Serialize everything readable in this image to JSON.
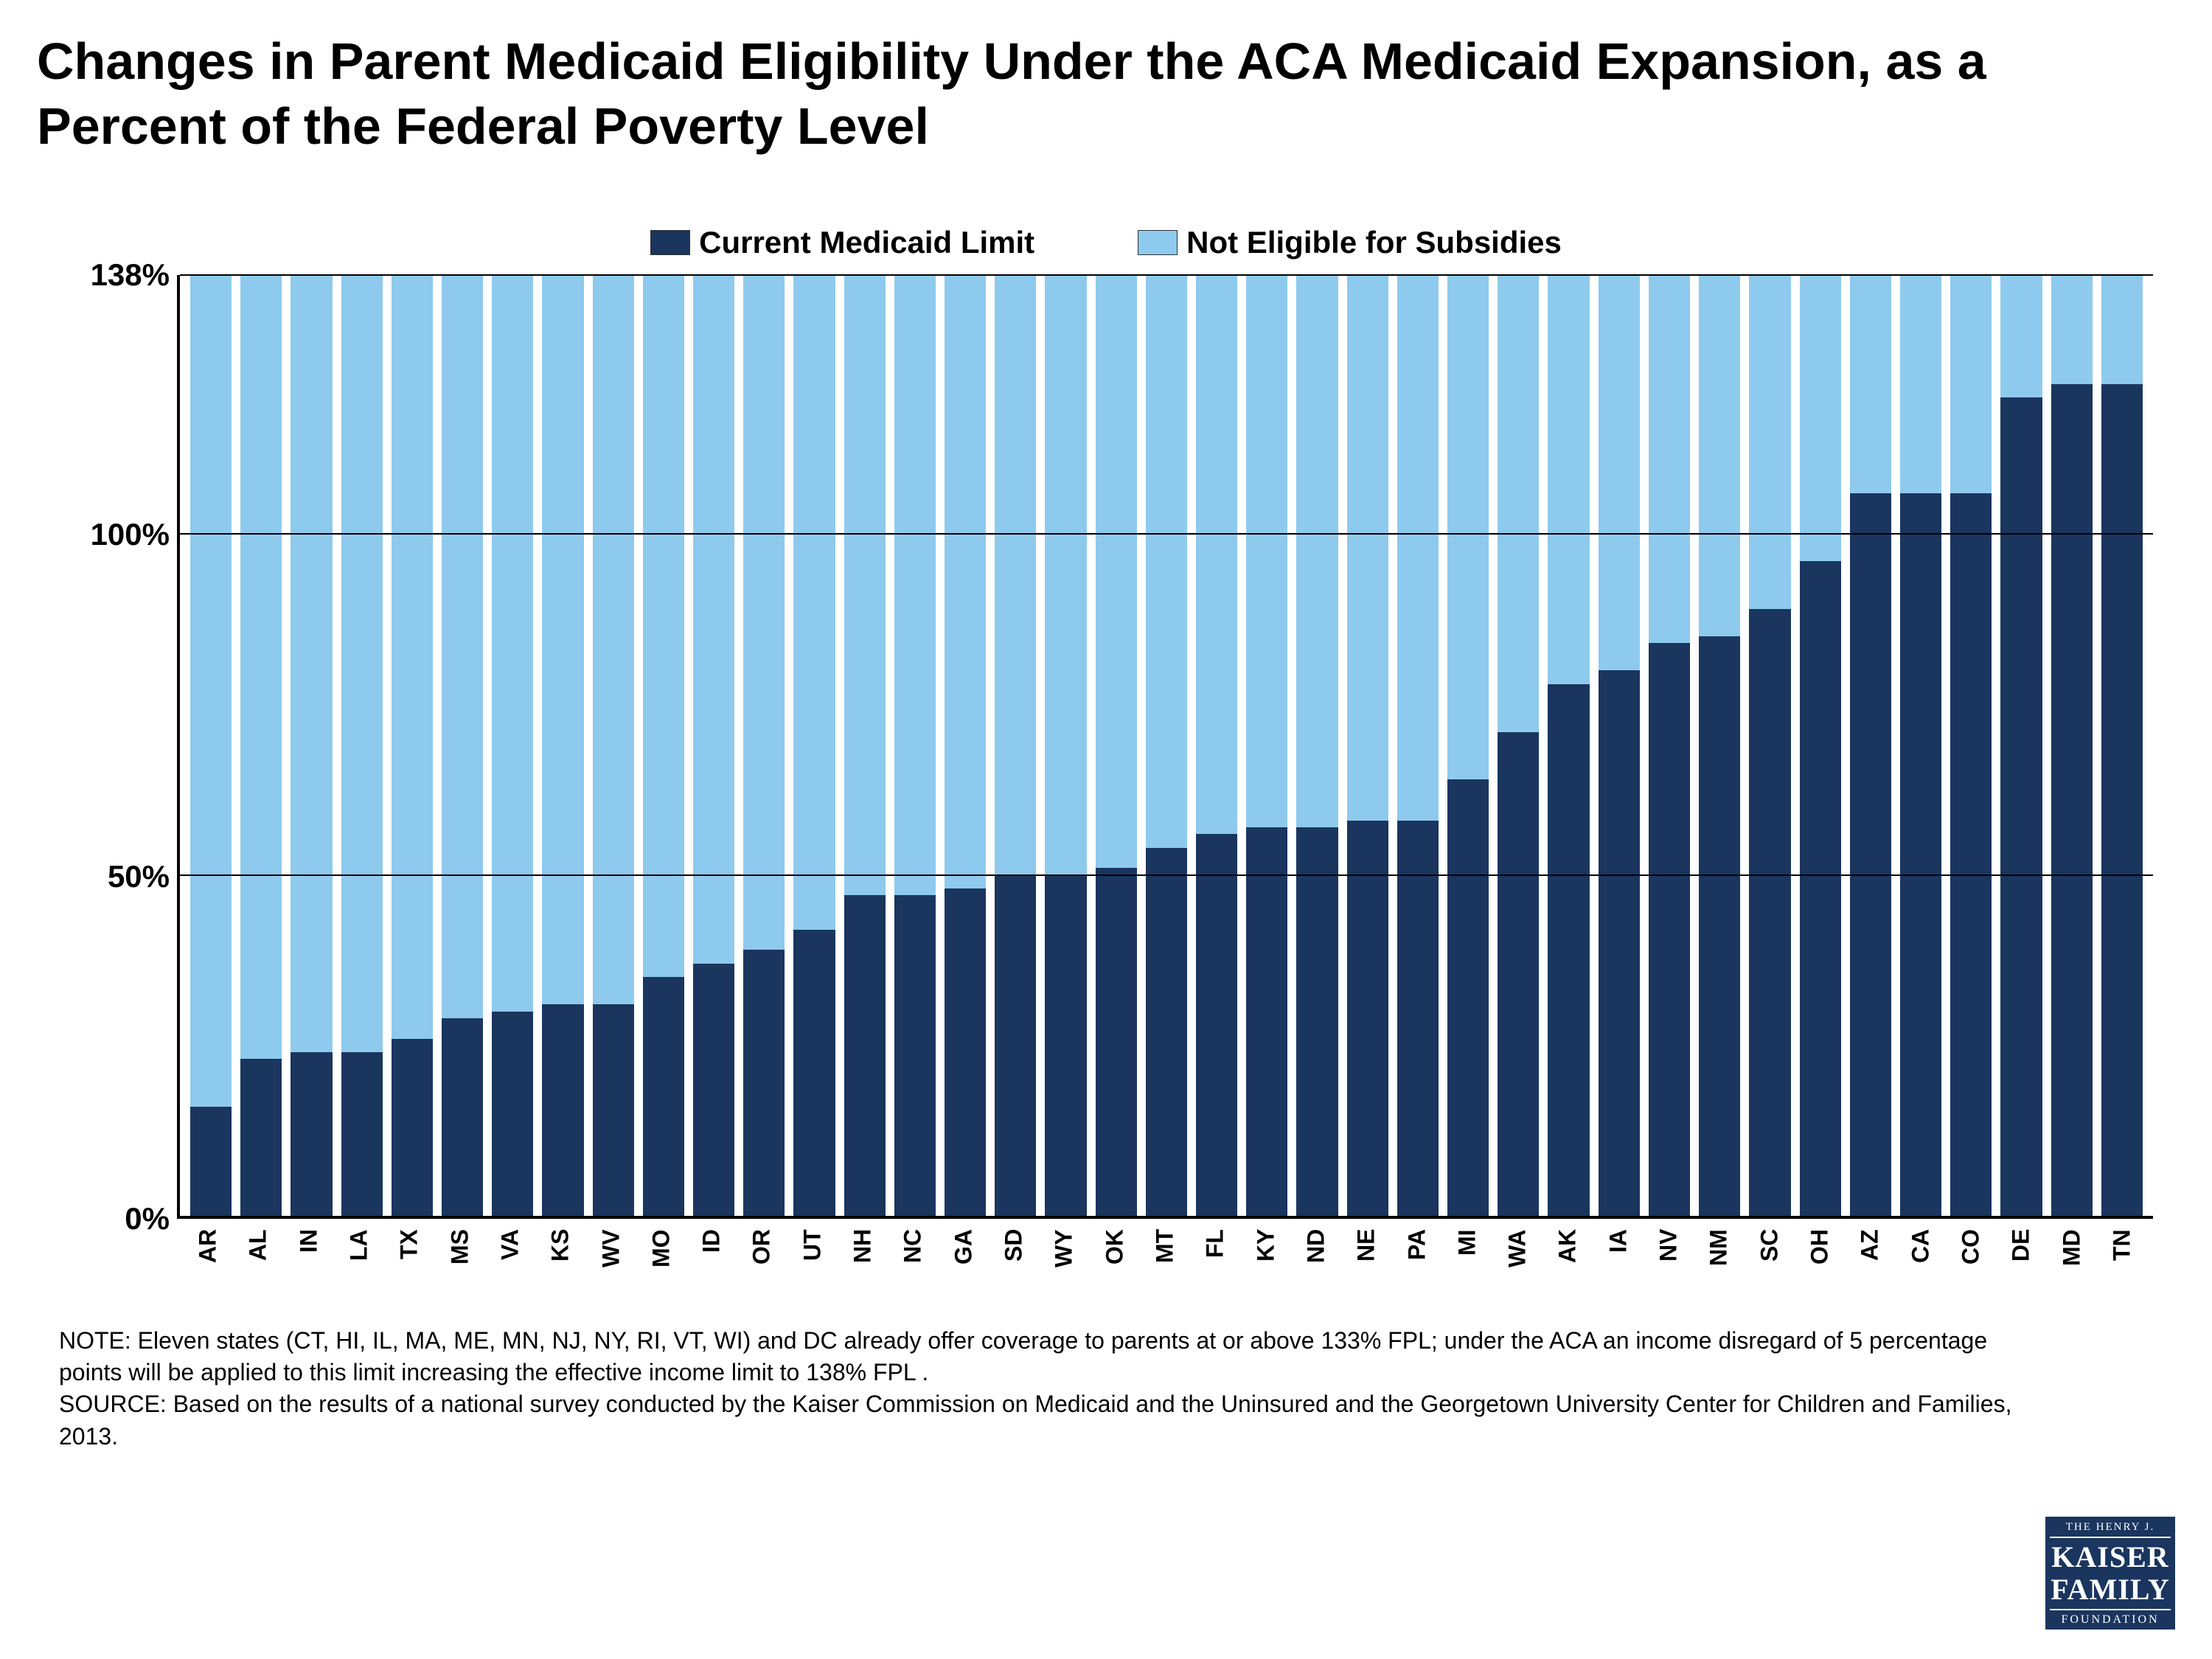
{
  "title": "Changes in Parent Medicaid Eligibility Under the ACA Medicaid Expansion, as a Percent of the Federal Poverty Level",
  "title_fontsize": 70,
  "legend": {
    "items": [
      {
        "label": "Current Medicaid Limit",
        "color": "#1a355e"
      },
      {
        "label": "Not Eligible for Subsidies",
        "color": "#8ecaed"
      }
    ],
    "fontsize": 42
  },
  "chart": {
    "type": "stacked-bar",
    "y_max": 138,
    "y_ticks": [
      0,
      50,
      100,
      138
    ],
    "y_tick_labels": [
      "0%",
      "50%",
      "100%",
      "138%"
    ],
    "axis_fontsize": 42,
    "bar_total": 138,
    "series_colors": {
      "current": "#1a355e",
      "not_eligible": "#8ecaed"
    },
    "grid_color": "#000000",
    "background_color": "#ffffff",
    "categories": [
      "AR",
      "AL",
      "IN",
      "LA",
      "TX",
      "MS",
      "VA",
      "KS",
      "WV",
      "MO",
      "ID",
      "OR",
      "UT",
      "NH",
      "NC",
      "GA",
      "SD",
      "WY",
      "OK",
      "MT",
      "FL",
      "KY",
      "ND",
      "NE",
      "PA",
      "MI",
      "WA",
      "AK",
      "IA",
      "NV",
      "NM",
      "SC",
      "OH",
      "AZ",
      "CA",
      "CO",
      "DE",
      "MD",
      "TN"
    ],
    "current_values": [
      16,
      23,
      24,
      24,
      26,
      29,
      30,
      31,
      31,
      35,
      37,
      39,
      42,
      47,
      47,
      48,
      50,
      50,
      51,
      54,
      56,
      57,
      57,
      58,
      58,
      64,
      71,
      78,
      80,
      84,
      85,
      89,
      96,
      106,
      106,
      106,
      120,
      122,
      122
    ],
    "x_label_fontsize": 32
  },
  "notes": {
    "line1": "NOTE: Eleven states (CT, HI, IL, MA, ME, MN, NJ, NY, RI, VT, WI) and DC already offer coverage to parents at or above 133% FPL; under the ACA an income disregard of 5 percentage points will be applied to this limit increasing the effective income limit to 138% FPL .",
    "line2": "SOURCE: Based on the results of a national survey conducted by the Kaiser Commission on Medicaid and the Uninsured and the Georgetown University Center for Children and Families, 2013.",
    "fontsize": 32
  },
  "logo": {
    "line_top": "THE HENRY J.",
    "line_mid1": "KAISER",
    "line_mid2": "FAMILY",
    "line_bot": "FOUNDATION",
    "bg": "#1a355e",
    "fg": "#ffffff"
  }
}
